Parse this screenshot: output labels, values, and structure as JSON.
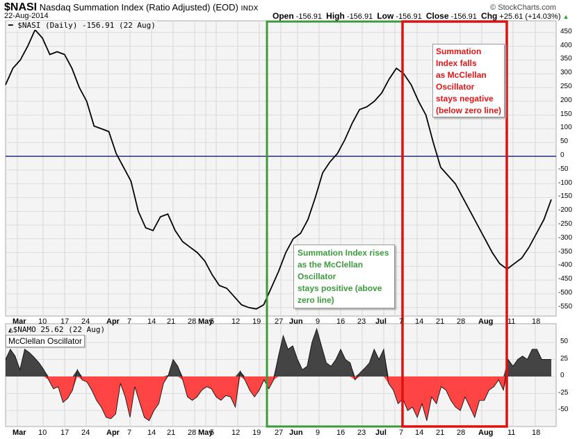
{
  "header": {
    "symbol": "$NASI",
    "name": "Nasdaq Summation Index (Ratio Adjusted) (EOD)",
    "exchange": "INDX",
    "date": "22-Aug-2014",
    "copyright": "© StockCharts.com",
    "open_label": "Open",
    "open": "-156.91",
    "high_label": "High",
    "high": "-156.91",
    "low_label": "Low",
    "low": "-156.91",
    "close_label": "Close",
    "close": "-156.91",
    "chg_label": "Chg",
    "chg": "+25.61 (+14.03%)",
    "chg_icon": "up-triangle-icon"
  },
  "top_panel": {
    "legend": "$NASI (Daily) -156.91 (22 Aug)",
    "annotation_green": [
      "Summation Index rises",
      "as the McClellan",
      "Oscillator",
      "stays positive (above",
      "zero line)"
    ],
    "annotation_red": [
      "Summation",
      "Index falls",
      "as McClellan",
      "Oscillator",
      "stays negative",
      "(below zero line)"
    ]
  },
  "bottom_panel": {
    "legend": "$NAMO 25.62 (22 Aug)",
    "label": "McClellan Oscillator"
  },
  "colors": {
    "green_box": "#3c9a3c",
    "red_box": "#dd1111",
    "zero_line": "#000066",
    "positive_fill": "#444444",
    "negative_fill": "#ff4444"
  },
  "chart_data": [
    {
      "type": "line",
      "title": "$NASI Nasdaq Summation Index (Ratio Adjusted)",
      "ylabel": "",
      "ylim": [
        -570,
        480
      ],
      "y_ticks": [
        450,
        400,
        350,
        300,
        250,
        200,
        150,
        100,
        50,
        0,
        -50,
        -100,
        -150,
        -200,
        -250,
        -300,
        -350,
        -400,
        -450,
        -500,
        -550
      ],
      "x_tick_labels": [
        "Mar",
        "10",
        "17",
        "24",
        "Apr",
        "7",
        "14",
        "21",
        "28",
        "May",
        "5",
        "12",
        "19",
        "27",
        "Jun",
        "9",
        "16",
        "23",
        "Jul",
        "7",
        "14",
        "21",
        "28",
        "Aug",
        "11",
        "18"
      ],
      "grid": true,
      "x": [
        "Feb 28",
        "Mar 3",
        "Mar 5",
        "Mar 7",
        "Mar 10",
        "Mar 12",
        "Mar 14",
        "Mar 17",
        "Mar 19",
        "Mar 21",
        "Mar 24",
        "Mar 26",
        "Mar 28",
        "Mar 31",
        "Apr 2",
        "Apr 4",
        "Apr 7",
        "Apr 9",
        "Apr 11",
        "Apr 14",
        "Apr 16",
        "Apr 18",
        "Apr 21",
        "Apr 23",
        "Apr 25",
        "Apr 28",
        "Apr 30",
        "May 2",
        "May 5",
        "May 7",
        "May 9",
        "May 12",
        "May 14",
        "May 16",
        "May 19",
        "May 21",
        "May 23",
        "May 27",
        "May 29",
        "Jun 2",
        "Jun 4",
        "Jun 6",
        "Jun 9",
        "Jun 11",
        "Jun 13",
        "Jun 16",
        "Jun 18",
        "Jun 20",
        "Jun 23",
        "Jun 25",
        "Jun 27",
        "Jun 30",
        "Jul 2",
        "Jul 3",
        "Jul 7",
        "Jul 9",
        "Jul 11",
        "Jul 14",
        "Jul 16",
        "Jul 18",
        "Jul 21",
        "Jul 23",
        "Jul 25",
        "Jul 28",
        "Jul 30",
        "Aug 1",
        "Aug 4",
        "Aug 6",
        "Aug 8",
        "Aug 11",
        "Aug 13",
        "Aug 15",
        "Aug 18",
        "Aug 20",
        "Aug 22"
      ],
      "values": [
        260,
        320,
        350,
        400,
        460,
        430,
        370,
        380,
        370,
        320,
        250,
        200,
        110,
        100,
        90,
        10,
        -40,
        -90,
        -200,
        -260,
        -270,
        -220,
        -210,
        -270,
        -310,
        -330,
        -350,
        -380,
        -430,
        -470,
        -480,
        -510,
        -540,
        -550,
        -555,
        -540,
        -480,
        -420,
        -350,
        -300,
        -280,
        -230,
        -150,
        -60,
        -20,
        10,
        60,
        120,
        170,
        180,
        200,
        230,
        280,
        320,
        300,
        260,
        200,
        150,
        50,
        -40,
        -70,
        -100,
        -150,
        -200,
        -250,
        -300,
        -350,
        -390,
        -410,
        -390,
        -370,
        -330,
        -280,
        -230,
        -157
      ]
    },
    {
      "type": "area",
      "title": "$NAMO McClellan Oscillator",
      "ylim": [
        -70,
        65
      ],
      "y_ticks": [
        50,
        25,
        0,
        -25,
        -50
      ],
      "grid": true,
      "values": [
        25,
        40,
        30,
        10,
        40,
        35,
        28,
        20,
        10,
        -5,
        -18,
        -15,
        -38,
        -32,
        -20,
        10,
        -5,
        -8,
        -20,
        -35,
        -45,
        -60,
        -62,
        -55,
        -10,
        -30,
        -60,
        -15,
        -38,
        -60,
        -65,
        -50,
        -40,
        -10,
        2,
        25,
        15,
        -5,
        -30,
        -35,
        -30,
        -20,
        -15,
        -18,
        -30,
        -35,
        -28,
        -30,
        -45,
        8,
        -5,
        -20,
        -30,
        -20,
        -5,
        -18,
        -5,
        30,
        60,
        40,
        45,
        25,
        10,
        15,
        50,
        70,
        45,
        20,
        15,
        25,
        40,
        25,
        20,
        -5,
        5,
        12,
        20,
        40,
        25,
        40,
        -10,
        -20,
        -40,
        -33,
        -50,
        -45,
        -60,
        -40,
        -65,
        -30,
        -40,
        -15,
        -20,
        -35,
        -45,
        -50,
        -30,
        -45,
        -60,
        -35,
        -35,
        -20,
        -15,
        -5,
        -20,
        25,
        15,
        25,
        30,
        25,
        40,
        40,
        25,
        25,
        25
      ]
    }
  ],
  "x_axis_top": [
    "Mar",
    "10",
    "17",
    "24",
    "Apr",
    "7",
    "14",
    "21",
    "28",
    "May",
    "5",
    "12",
    "19",
    "27",
    "Jun",
    "9",
    "16",
    "23",
    "Jul",
    "7",
    "14",
    "21",
    "28",
    "Aug",
    "11",
    "18"
  ],
  "x_axis_bottom": [
    "Mar",
    "10",
    "17",
    "24",
    "Apr",
    "7",
    "14",
    "21",
    "28",
    "May",
    "5",
    "12",
    "19",
    "27",
    "Jun",
    "9",
    "16",
    "23",
    "Jul",
    "7",
    "14",
    "21",
    "28",
    "Aug",
    "11",
    "18"
  ]
}
